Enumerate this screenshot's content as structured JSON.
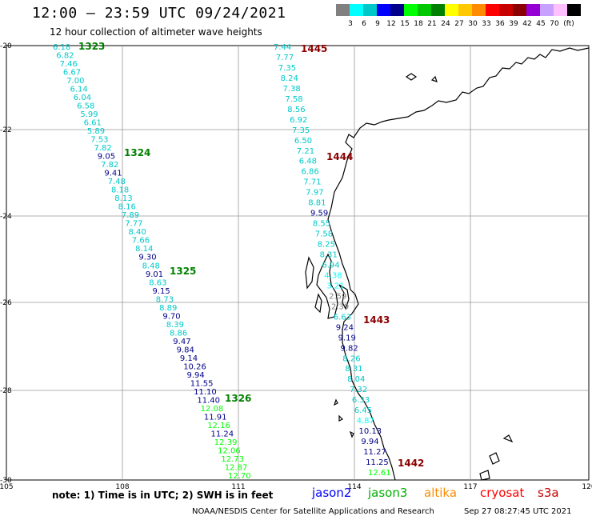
{
  "header": {
    "title": "12:00 – 23:59 UTC 09/24/2021",
    "subtitle": "12 hour collection of altimeter wave heights"
  },
  "legend": {
    "unit": "(ft)",
    "colors": [
      "#808080",
      "#00ffff",
      "#00c8c8",
      "#0000ff",
      "#00008b",
      "#00ff00",
      "#00c800",
      "#008000",
      "#ffff00",
      "#ffc800",
      "#ff8c00",
      "#ff0000",
      "#c80000",
      "#8b0000",
      "#9400d3",
      "#c8a0ff",
      "#ffc0ff",
      "#000000"
    ],
    "labels": [
      "3",
      "6",
      "9",
      "12",
      "15",
      "18",
      "21",
      "24",
      "27",
      "30",
      "33",
      "36",
      "39",
      "42",
      "45",
      "70"
    ]
  },
  "axes": {
    "lat_labels": [
      "-20",
      "-22",
      "-24",
      "-26",
      "-28",
      "-30"
    ],
    "lon_labels": [
      "105",
      "108",
      "111",
      "114",
      "117",
      "120"
    ]
  },
  "tracks": [
    {
      "id": "1323",
      "color": "#008000",
      "points": [
        {
          "v": "6.18",
          "c": "#00c8c8"
        },
        {
          "v": "6.82",
          "c": "#00c8c8"
        },
        {
          "v": "7.46",
          "c": "#00c8c8"
        },
        {
          "v": "6.67",
          "c": "#00c8c8"
        },
        {
          "v": "7.00",
          "c": "#00c8c8"
        },
        {
          "v": "6.14",
          "c": "#00c8c8"
        },
        {
          "v": "6.04",
          "c": "#00c8c8"
        },
        {
          "v": "6.58",
          "c": "#00c8c8"
        },
        {
          "v": "5.99",
          "c": "#00c8c8"
        },
        {
          "v": "6.61",
          "c": "#00c8c8"
        },
        {
          "v": "5.89",
          "c": "#00c8c8"
        },
        {
          "v": "7.53",
          "c": "#00c8c8"
        },
        {
          "v": "7.82",
          "c": "#00c8c8"
        },
        {
          "v": "9.05",
          "c": "#00008b"
        },
        {
          "v": "7.82",
          "c": "#00c8c8"
        },
        {
          "v": "9.41",
          "c": "#00008b"
        },
        {
          "v": "7.48",
          "c": "#00c8c8"
        },
        {
          "v": "8.18",
          "c": "#00c8c8"
        },
        {
          "v": "8.13",
          "c": "#00c8c8"
        },
        {
          "v": "8.16",
          "c": "#00c8c8"
        },
        {
          "v": "7.89",
          "c": "#00c8c8"
        },
        {
          "v": "7.77",
          "c": "#00c8c8"
        },
        {
          "v": "8.40",
          "c": "#00c8c8"
        },
        {
          "v": "7.66",
          "c": "#00c8c8"
        },
        {
          "v": "8.14",
          "c": "#00c8c8"
        },
        {
          "v": "9.30",
          "c": "#00008b"
        },
        {
          "v": "8.48",
          "c": "#00c8c8"
        },
        {
          "v": "9.01",
          "c": "#00008b"
        },
        {
          "v": "8.63",
          "c": "#00c8c8"
        },
        {
          "v": "9.15",
          "c": "#00008b"
        },
        {
          "v": "8.73",
          "c": "#00c8c8"
        },
        {
          "v": "8.89",
          "c": "#00c8c8"
        },
        {
          "v": "9.70",
          "c": "#00008b"
        },
        {
          "v": "8.39",
          "c": "#00c8c8"
        },
        {
          "v": "8.86",
          "c": "#00c8c8"
        },
        {
          "v": "9.47",
          "c": "#00008b"
        },
        {
          "v": "9.84",
          "c": "#00008b"
        },
        {
          "v": "9.14",
          "c": "#00008b"
        },
        {
          "v": "10.26",
          "c": "#00008b"
        },
        {
          "v": "9.94",
          "c": "#00008b"
        },
        {
          "v": "11.55",
          "c": "#00008b"
        },
        {
          "v": "11.10",
          "c": "#00008b"
        },
        {
          "v": "11.40",
          "c": "#00008b"
        },
        {
          "v": "12.08",
          "c": "#00ff00"
        },
        {
          "v": "11.91",
          "c": "#00008b"
        },
        {
          "v": "12.16",
          "c": "#00ff00"
        },
        {
          "v": "11.24",
          "c": "#00008b"
        },
        {
          "v": "12.39",
          "c": "#00ff00"
        },
        {
          "v": "12.06",
          "c": "#00ff00"
        },
        {
          "v": "12.73",
          "c": "#00ff00"
        },
        {
          "v": "12.87",
          "c": "#00ff00"
        },
        {
          "v": "12.70",
          "c": "#00ff00"
        }
      ]
    },
    {
      "id": "1445",
      "color": "#8b0000",
      "points": [
        {
          "v": "7.44",
          "c": "#00c8c8"
        },
        {
          "v": "7.77",
          "c": "#00c8c8"
        },
        {
          "v": "7.35",
          "c": "#00c8c8"
        },
        {
          "v": "8.24",
          "c": "#00c8c8"
        },
        {
          "v": "7.38",
          "c": "#00c8c8"
        },
        {
          "v": "7.58",
          "c": "#00c8c8"
        },
        {
          "v": "8.56",
          "c": "#00c8c8"
        },
        {
          "v": "6.92",
          "c": "#00c8c8"
        },
        {
          "v": "7.35",
          "c": "#00c8c8"
        },
        {
          "v": "6.50",
          "c": "#00c8c8"
        },
        {
          "v": "7.21",
          "c": "#00c8c8"
        },
        {
          "v": "6.48",
          "c": "#00c8c8"
        },
        {
          "v": "6.86",
          "c": "#00c8c8"
        },
        {
          "v": "7.71",
          "c": "#00c8c8"
        },
        {
          "v": "7.97",
          "c": "#00c8c8"
        },
        {
          "v": "8.81",
          "c": "#00c8c8"
        },
        {
          "v": "9.59",
          "c": "#00008b"
        },
        {
          "v": "8.55",
          "c": "#00c8c8"
        },
        {
          "v": "7.58",
          "c": "#00c8c8"
        },
        {
          "v": "8.25",
          "c": "#00c8c8"
        },
        {
          "v": "8.31",
          "c": "#00c8c8"
        },
        {
          "v": "6.94",
          "c": "#00c8c8"
        },
        {
          "v": "4.38",
          "c": "#00ffff"
        },
        {
          "v": "3.21",
          "c": "#00ffff"
        },
        {
          "v": "2.59",
          "c": "#808080"
        },
        {
          "v": "2.39",
          "c": "#808080"
        },
        {
          "v": "6.63",
          "c": "#00c8c8"
        },
        {
          "v": "9.24",
          "c": "#00008b"
        },
        {
          "v": "9.19",
          "c": "#00008b"
        },
        {
          "v": "9.82",
          "c": "#00008b"
        },
        {
          "v": "8.26",
          "c": "#00c8c8"
        },
        {
          "v": "8.31",
          "c": "#00c8c8"
        },
        {
          "v": "8.04",
          "c": "#00c8c8"
        },
        {
          "v": "7.32",
          "c": "#00c8c8"
        },
        {
          "v": "6.33",
          "c": "#00c8c8"
        },
        {
          "v": "6.45",
          "c": "#00c8c8"
        },
        {
          "v": "4.87",
          "c": "#00ffff"
        },
        {
          "v": "10.13",
          "c": "#00008b"
        },
        {
          "v": "9.94",
          "c": "#00008b"
        },
        {
          "v": "11.27",
          "c": "#00008b"
        },
        {
          "v": "11.25",
          "c": "#00008b"
        },
        {
          "v": "12.61",
          "c": "#00ff00"
        }
      ]
    }
  ],
  "pass_labels": [
    {
      "text": "1323",
      "color": "#008000"
    },
    {
      "text": "1324",
      "color": "#008000"
    },
    {
      "text": "1325",
      "color": "#008000"
    },
    {
      "text": "1326",
      "color": "#008000"
    },
    {
      "text": "1445",
      "color": "#8b0000"
    },
    {
      "text": "1444",
      "color": "#8b0000"
    },
    {
      "text": "1443",
      "color": "#8b0000"
    },
    {
      "text": "1442",
      "color": "#8b0000"
    }
  ],
  "footer": {
    "note": "note: 1) Time is in UTC; 2) SWH is in feet",
    "satellites": [
      {
        "name": "jason2",
        "color": "#0000ff"
      },
      {
        "name": "jason3",
        "color": "#00b000"
      },
      {
        "name": "altika",
        "color": "#ff8c00"
      },
      {
        "name": "cryosat",
        "color": "#ff0000"
      },
      {
        "name": "s3a",
        "color": "#c80000"
      }
    ],
    "credit": "NOAA/NESDIS Center for Satellite Applications and Research",
    "timestamp": "Sep 27 08:27:45 UTC 2021"
  }
}
